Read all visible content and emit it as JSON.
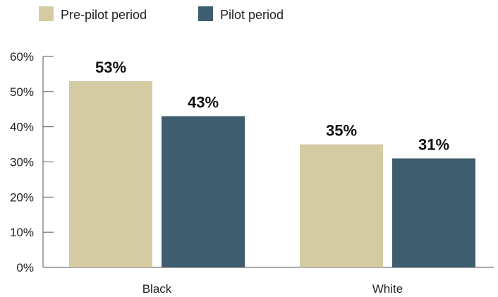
{
  "chart_data": {
    "type": "bar",
    "categories": [
      "Black",
      "White"
    ],
    "series": [
      {
        "name": "Pre-pilot period",
        "values": [
          53,
          35
        ],
        "labels": [
          "53%",
          "35%"
        ],
        "color": "#d4cba3"
      },
      {
        "name": "Pilot period",
        "values": [
          43,
          31
        ],
        "labels": [
          "43%",
          "31%"
        ],
        "color": "#3e5d6f"
      }
    ],
    "y_ticks": [
      {
        "value": 0,
        "label": "0%"
      },
      {
        "value": 10,
        "label": "10%"
      },
      {
        "value": 20,
        "label": "20%"
      },
      {
        "value": 30,
        "label": "30%"
      },
      {
        "value": 40,
        "label": "40%"
      },
      {
        "value": 50,
        "label": "50%"
      },
      {
        "value": 60,
        "label": "60%"
      }
    ],
    "ylim": [
      0,
      60
    ],
    "grid": false,
    "legend_position": "top-left"
  }
}
